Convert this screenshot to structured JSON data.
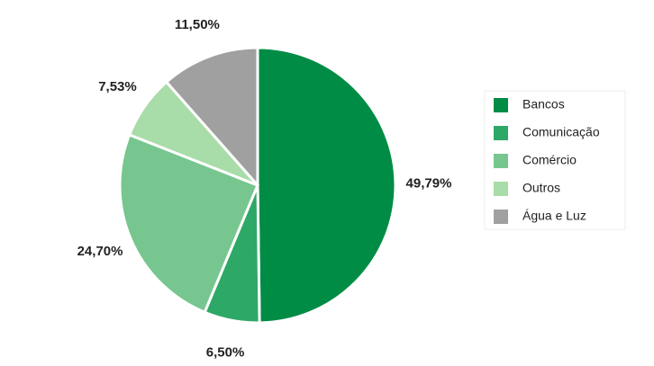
{
  "chart_data": {
    "type": "pie",
    "categories": [
      "Bancos",
      "Comunicação",
      "Comércio",
      "Outros",
      "Água e Luz"
    ],
    "values": [
      49.79,
      6.5,
      24.7,
      7.53,
      11.5
    ],
    "value_labels": [
      "49,79%",
      "6,50%",
      "24,70%",
      "7,53%",
      "11,50%"
    ],
    "colors": [
      "#008c45",
      "#2ea866",
      "#77c68f",
      "#a8dca8",
      "#a0a0a0"
    ],
    "legend": "right"
  }
}
